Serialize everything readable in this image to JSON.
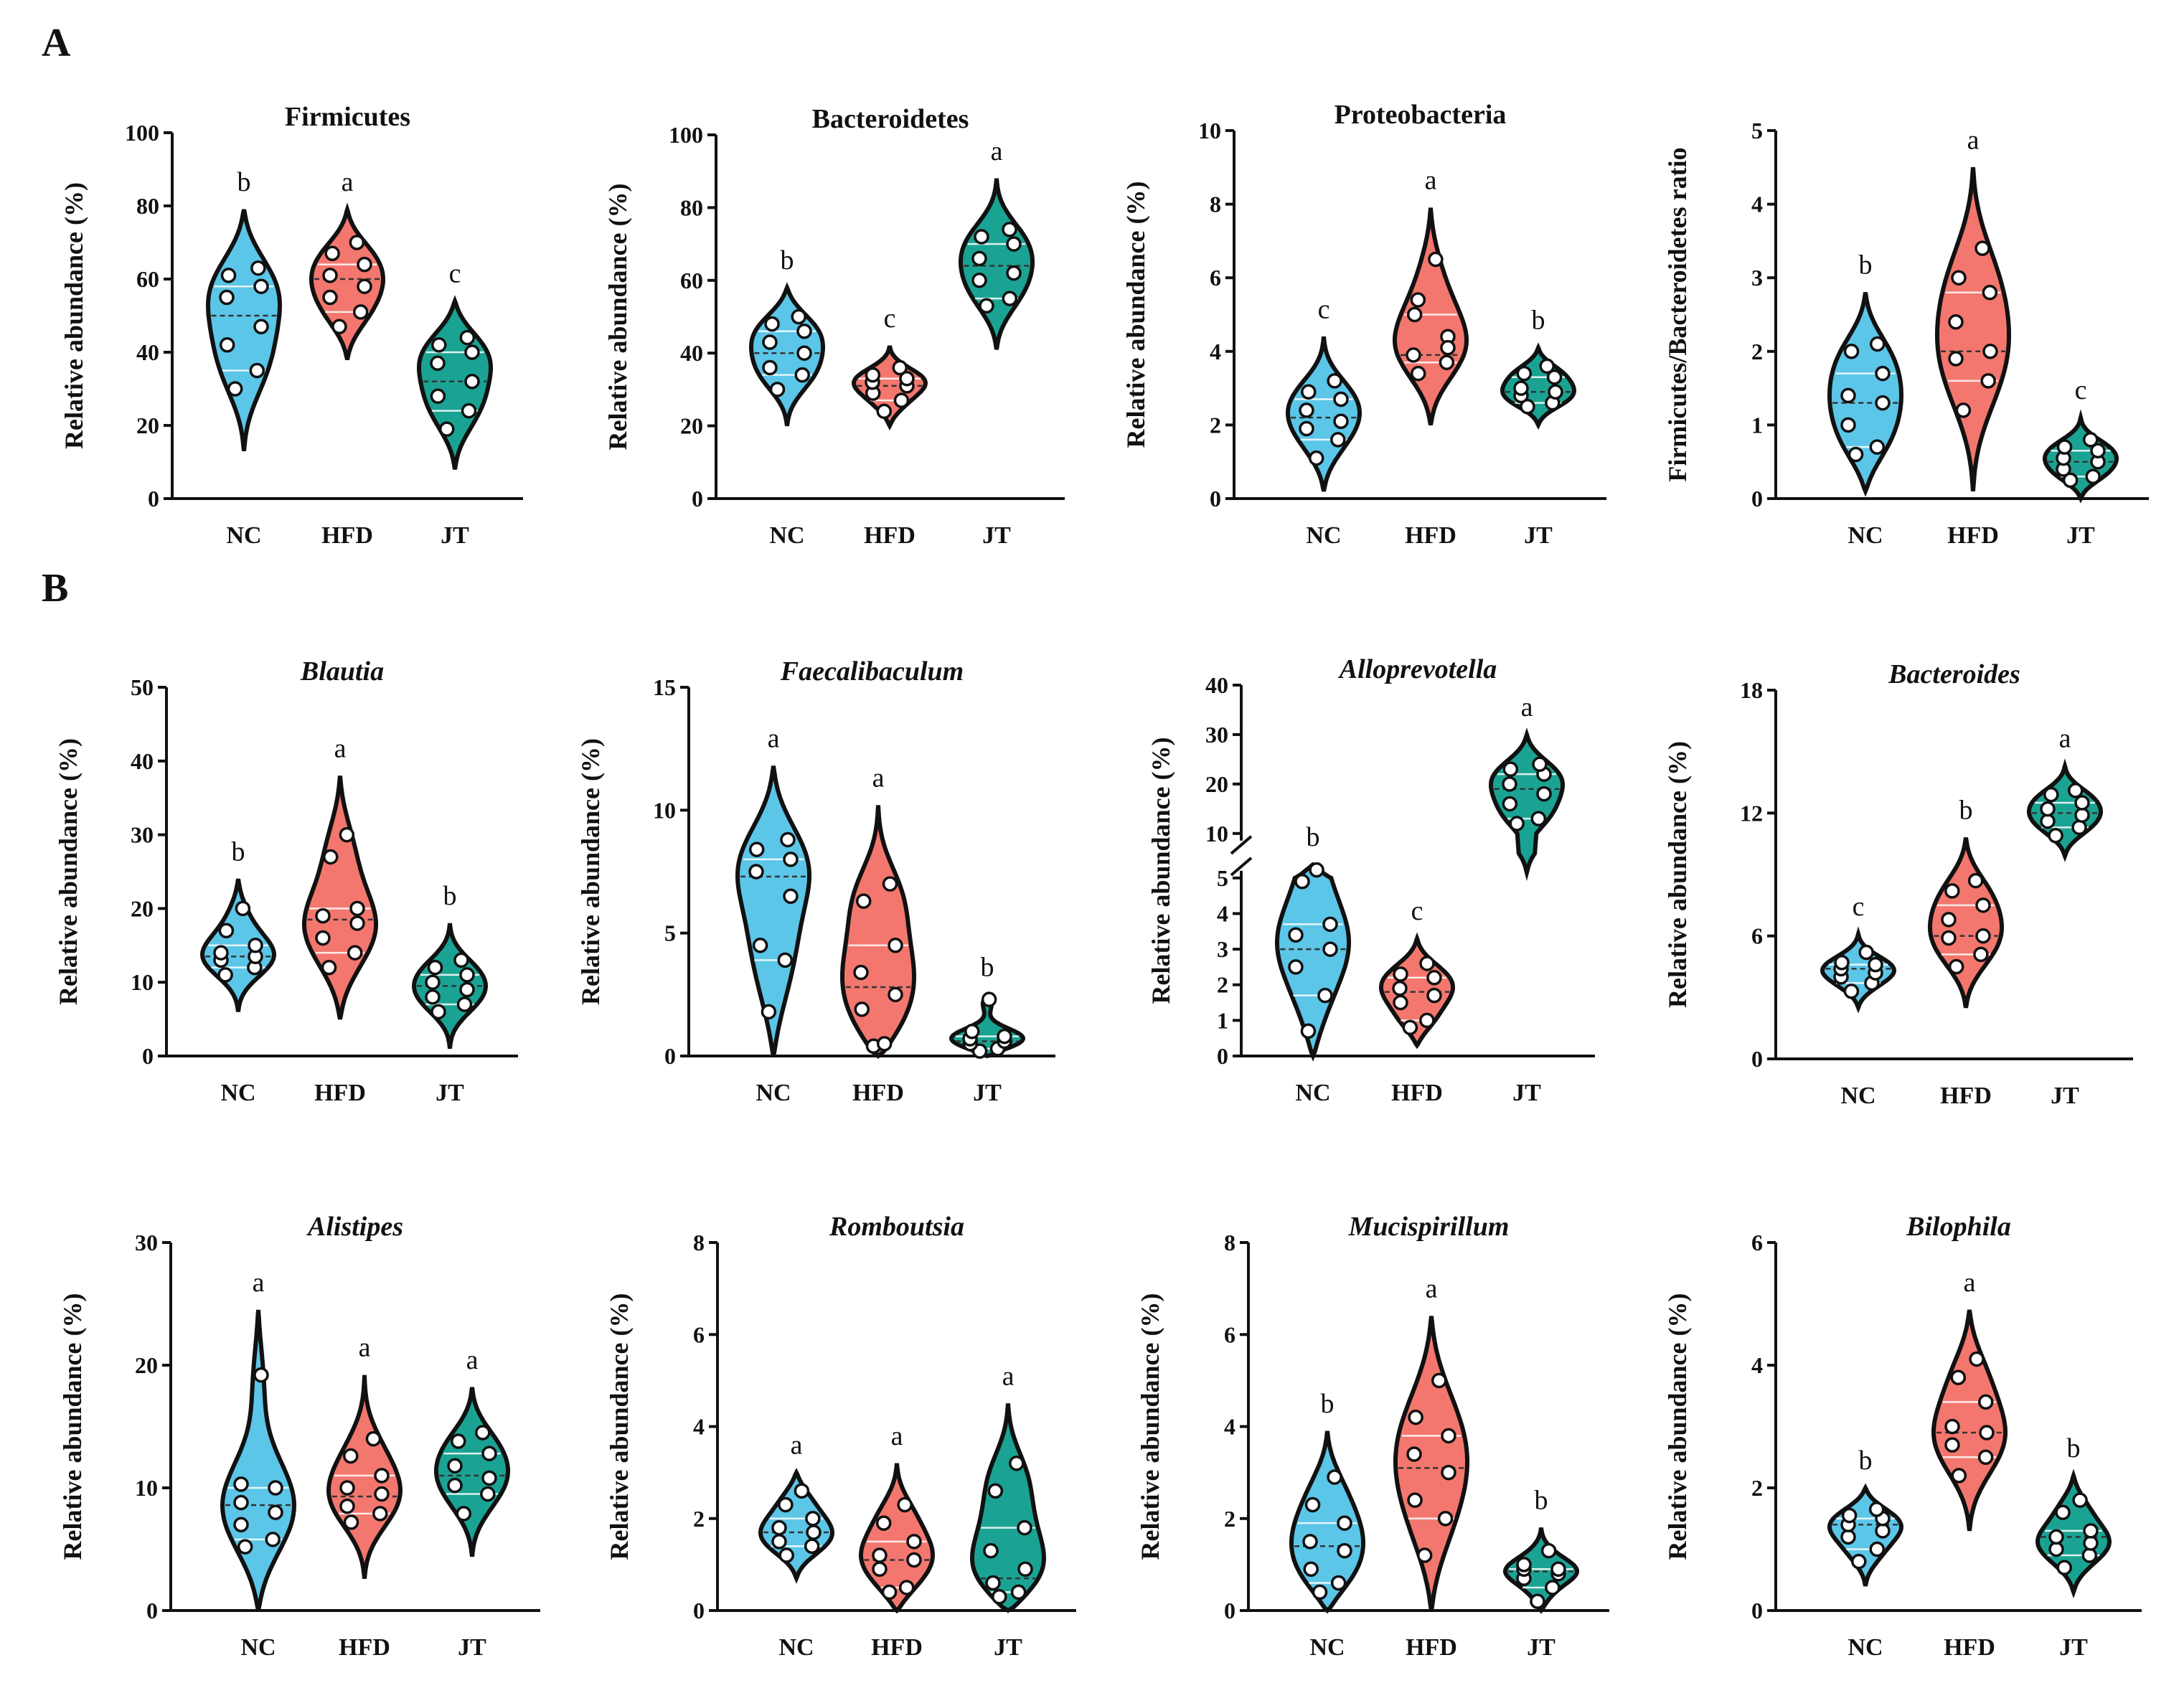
{
  "panel_labels": [
    "A",
    "B"
  ],
  "colors": {
    "NC": "#5bc6e8",
    "HFD": "#f3776e",
    "JT": "#1aa393"
  },
  "chart_data": [
    {
      "type": "violin",
      "panel": "A",
      "title": "Firmicutes",
      "italic": false,
      "ylabel": "Relative abundance (%)",
      "categories": [
        "NC",
        "HFD",
        "JT"
      ],
      "ylim": [
        0,
        100
      ],
      "yticks": [
        0,
        20,
        40,
        60,
        80,
        100
      ],
      "ytick_labels": [
        "0",
        "20",
        "40",
        "60",
        "80",
        "100"
      ],
      "series": [
        {
          "name": "NC",
          "points": [
            30,
            35,
            42,
            47,
            55,
            58,
            61,
            63
          ],
          "median": 50,
          "range": [
            13,
            79
          ],
          "letter": "b"
        },
        {
          "name": "HFD",
          "points": [
            47,
            51,
            55,
            58,
            61,
            64,
            67,
            70
          ],
          "median": 60,
          "range": [
            38,
            79
          ],
          "letter": "a"
        },
        {
          "name": "JT",
          "points": [
            19,
            24,
            28,
            32,
            37,
            40,
            42,
            44
          ],
          "median": 32,
          "range": [
            8,
            54
          ],
          "letter": "c"
        }
      ]
    },
    {
      "type": "violin",
      "panel": "A",
      "title": "Bacteroidetes",
      "italic": false,
      "ylabel": "Relative abundance (%)",
      "categories": [
        "NC",
        "HFD",
        "JT"
      ],
      "ylim": [
        0,
        100
      ],
      "yticks": [
        0,
        20,
        40,
        60,
        80,
        100
      ],
      "ytick_labels": [
        "0",
        "20",
        "40",
        "60",
        "80",
        "100"
      ],
      "series": [
        {
          "name": "NC",
          "points": [
            30,
            34,
            36,
            40,
            43,
            46,
            48,
            50
          ],
          "median": 40,
          "range": [
            20,
            58
          ],
          "letter": "b"
        },
        {
          "name": "HFD",
          "points": [
            24,
            27,
            29,
            31,
            32,
            33,
            34,
            36
          ],
          "median": 31,
          "range": [
            20,
            42
          ],
          "letter": "c"
        },
        {
          "name": "JT",
          "points": [
            53,
            55,
            60,
            62,
            66,
            70,
            72,
            74
          ],
          "median": 64,
          "range": [
            41,
            88
          ],
          "letter": "a"
        }
      ]
    },
    {
      "type": "violin",
      "panel": "A",
      "title": "Proteobacteria",
      "italic": false,
      "ylabel": "Relative abundance (%)",
      "categories": [
        "NC",
        "HFD",
        "JT"
      ],
      "ylim": [
        0,
        10
      ],
      "yticks": [
        0,
        2,
        4,
        6,
        8,
        10
      ],
      "ytick_labels": [
        "0",
        "2",
        "4",
        "6",
        "8",
        "10"
      ],
      "series": [
        {
          "name": "NC",
          "points": [
            1.1,
            1.6,
            1.9,
            2.1,
            2.4,
            2.7,
            2.9,
            3.2
          ],
          "median": 2.2,
          "range": [
            0.2,
            4.4
          ],
          "letter": "c"
        },
        {
          "name": "HFD",
          "points": [
            3.4,
            3.7,
            3.9,
            4.4,
            5.0,
            6.5,
            5.4,
            4.1
          ],
          "median": 3.9,
          "range": [
            2.0,
            7.9
          ],
          "letter": "a"
        },
        {
          "name": "JT",
          "points": [
            2.5,
            2.6,
            2.8,
            2.9,
            3.0,
            3.3,
            3.4,
            3.6
          ],
          "median": 2.9,
          "range": [
            2.0,
            4.1
          ],
          "letter": "b"
        }
      ]
    },
    {
      "type": "violin",
      "panel": "A",
      "title": "",
      "italic": false,
      "ylabel": "Firmicutes/Bacteroidetes ratio",
      "categories": [
        "NC",
        "HFD",
        "JT"
      ],
      "ylim": [
        0,
        5
      ],
      "yticks": [
        0,
        1,
        2,
        3,
        4,
        5
      ],
      "ytick_labels": [
        "0",
        "1",
        "2",
        "3",
        "4",
        "5"
      ],
      "series": [
        {
          "name": "NC",
          "points": [
            0.6,
            0.7,
            1.0,
            1.3,
            1.4,
            1.7,
            2.0,
            2.1
          ],
          "median": 1.3,
          "range": [
            0.1,
            2.8
          ],
          "letter": "b"
        },
        {
          "name": "HFD",
          "points": [
            1.2,
            1.6,
            1.9,
            2.0,
            2.4,
            2.8,
            3.0,
            3.4
          ],
          "median": 2.0,
          "range": [
            0.1,
            4.5
          ],
          "letter": "a"
        },
        {
          "name": "JT",
          "points": [
            0.25,
            0.3,
            0.4,
            0.5,
            0.55,
            0.65,
            0.7,
            0.8
          ],
          "median": 0.5,
          "range": [
            0.0,
            1.1
          ],
          "letter": "c"
        }
      ]
    },
    {
      "type": "violin",
      "panel": "B",
      "title": "Blautia",
      "italic": true,
      "ylabel": "Relative abundance (%)",
      "categories": [
        "NC",
        "HFD",
        "JT"
      ],
      "ylim": [
        0,
        50
      ],
      "yticks": [
        0,
        10,
        20,
        30,
        40,
        50
      ],
      "ytick_labels": [
        "0",
        "10",
        "20",
        "30",
        "40",
        "50"
      ],
      "series": [
        {
          "name": "NC",
          "points": [
            11,
            12,
            13,
            13.5,
            14,
            15,
            17,
            20
          ],
          "median": 13.5,
          "range": [
            6,
            24
          ],
          "letter": "b"
        },
        {
          "name": "HFD",
          "points": [
            12,
            14,
            16,
            18,
            19,
            20,
            27,
            30
          ],
          "median": 18.5,
          "range": [
            5,
            38
          ],
          "letter": "a"
        },
        {
          "name": "JT",
          "points": [
            6,
            7,
            8,
            9,
            10,
            11,
            12,
            13
          ],
          "median": 9.5,
          "range": [
            1,
            18
          ],
          "letter": "b"
        }
      ]
    },
    {
      "type": "violin",
      "panel": "B",
      "title": "Faecalibaculum",
      "italic": true,
      "ylabel": "Relative abundance (%)",
      "categories": [
        "NC",
        "HFD",
        "JT"
      ],
      "ylim": [
        0,
        15
      ],
      "yticks": [
        0,
        5,
        10,
        15
      ],
      "ytick_labels": [
        "0",
        "5",
        "10",
        "15"
      ],
      "series": [
        {
          "name": "NC",
          "points": [
            1.8,
            3.9,
            4.5,
            6.5,
            7.5,
            8.0,
            8.4,
            8.8
          ],
          "median": 7.3,
          "range": [
            0,
            11.8
          ],
          "letter": "a"
        },
        {
          "name": "HFD",
          "points": [
            0.4,
            0.5,
            1.9,
            2.5,
            3.4,
            4.5,
            6.3,
            7.0
          ],
          "median": 2.8,
          "range": [
            0,
            10.2
          ],
          "letter": "a"
        },
        {
          "name": "JT",
          "points": [
            0.2,
            0.3,
            0.5,
            0.6,
            0.7,
            0.8,
            1.0,
            2.3
          ],
          "median": 0.6,
          "range": [
            0,
            2.5
          ],
          "letter": "b"
        }
      ]
    },
    {
      "type": "violin",
      "panel": "B",
      "title": "Alloprevotella",
      "italic": true,
      "ylabel": "Relative abundance (%)",
      "categories": [
        "NC",
        "HFD",
        "JT"
      ],
      "ylim": [
        0,
        40
      ],
      "broken_axis": [
        5,
        10
      ],
      "yticks": [
        0,
        1,
        2,
        3,
        4,
        5,
        10,
        20,
        30,
        40
      ],
      "ytick_labels": [
        "0",
        "1",
        "2",
        "3",
        "4",
        "5",
        "10",
        "20",
        "30",
        "40"
      ],
      "series": [
        {
          "name": "NC",
          "points": [
            0.7,
            1.7,
            2.5,
            3.0,
            3.4,
            3.7,
            4.9,
            6.5
          ],
          "median": 3.0,
          "range": [
            0,
            7.5
          ],
          "letter": "b"
        },
        {
          "name": "HFD",
          "points": [
            0.8,
            1.0,
            1.5,
            1.7,
            1.9,
            2.2,
            2.3,
            2.6
          ],
          "median": 1.8,
          "range": [
            0.3,
            3.3
          ],
          "letter": "c"
        },
        {
          "name": "JT",
          "points": [
            12,
            13,
            16,
            18,
            20,
            22,
            23,
            24
          ],
          "median": 19,
          "range": [
            6,
            30
          ],
          "letter": "a"
        }
      ]
    },
    {
      "type": "violin",
      "panel": "B",
      "title": "Bacteroides",
      "italic": true,
      "ylabel": "Relative abundance (%)",
      "categories": [
        "NC",
        "HFD",
        "JT"
      ],
      "ylim": [
        0,
        18
      ],
      "yticks": [
        0,
        6,
        12,
        18
      ],
      "ytick_labels": [
        "0",
        "6",
        "12",
        "18"
      ],
      "series": [
        {
          "name": "NC",
          "points": [
            3.3,
            3.7,
            4.0,
            4.2,
            4.4,
            4.6,
            4.7,
            5.2
          ],
          "median": 4.4,
          "range": [
            2.5,
            6.1
          ],
          "letter": "c"
        },
        {
          "name": "HFD",
          "points": [
            4.5,
            5.1,
            5.9,
            6.0,
            6.8,
            7.5,
            8.2,
            8.7
          ],
          "median": 6.0,
          "range": [
            2.5,
            10.8
          ],
          "letter": "b"
        },
        {
          "name": "JT",
          "points": [
            10.9,
            11.3,
            11.6,
            11.9,
            12.2,
            12.5,
            12.9,
            13.1
          ],
          "median": 12.0,
          "range": [
            9.9,
            14.3
          ],
          "letter": "a"
        }
      ]
    },
    {
      "type": "violin",
      "panel": "B",
      "title": "Alistipes",
      "italic": true,
      "ylabel": "Relative abundance (%)",
      "categories": [
        "NC",
        "HFD",
        "JT"
      ],
      "ylim": [
        0,
        30
      ],
      "yticks": [
        0,
        10,
        20,
        30
      ],
      "ytick_labels": [
        "0",
        "10",
        "20",
        "30"
      ],
      "series": [
        {
          "name": "NC",
          "points": [
            5.2,
            5.8,
            7.0,
            8.0,
            8.8,
            10.0,
            10.3,
            19.2
          ],
          "median": 8.6,
          "range": [
            0,
            24.5
          ],
          "letter": "a"
        },
        {
          "name": "HFD",
          "points": [
            7.2,
            7.9,
            8.5,
            9.5,
            10.0,
            11.0,
            12.6,
            14.0
          ],
          "median": 9.3,
          "range": [
            2.6,
            19.2
          ],
          "letter": "a"
        },
        {
          "name": "JT",
          "points": [
            7.9,
            9.5,
            10.2,
            10.8,
            11.8,
            12.8,
            13.8,
            14.5
          ],
          "median": 11.0,
          "range": [
            4.4,
            18.2
          ],
          "letter": "a"
        }
      ]
    },
    {
      "type": "violin",
      "panel": "B",
      "title": "Romboutsia",
      "italic": true,
      "ylabel": "Relative abundance (%)",
      "categories": [
        "NC",
        "HFD",
        "JT"
      ],
      "ylim": [
        0,
        8
      ],
      "yticks": [
        0,
        2,
        4,
        6,
        8
      ],
      "ytick_labels": [
        "0",
        "2",
        "4",
        "6",
        "8"
      ],
      "series": [
        {
          "name": "NC",
          "points": [
            1.2,
            1.4,
            1.5,
            1.7,
            1.8,
            2.0,
            2.3,
            2.6
          ],
          "median": 1.7,
          "range": [
            0.7,
            3.0
          ],
          "letter": "a"
        },
        {
          "name": "HFD",
          "points": [
            0.4,
            0.5,
            0.9,
            1.1,
            1.2,
            1.5,
            1.9,
            2.3
          ],
          "median": 1.1,
          "range": [
            0,
            3.2
          ],
          "letter": "a"
        },
        {
          "name": "JT",
          "points": [
            0.3,
            0.4,
            0.6,
            0.9,
            1.3,
            1.8,
            2.6,
            3.2
          ],
          "median": 0.7,
          "range": [
            0,
            4.5
          ],
          "letter": "a"
        }
      ]
    },
    {
      "type": "violin",
      "panel": "B",
      "title": "Mucispirillum",
      "italic": true,
      "ylabel": "Relative abundance (%)",
      "categories": [
        "NC",
        "HFD",
        "JT"
      ],
      "ylim": [
        0,
        8
      ],
      "yticks": [
        0,
        2,
        4,
        6,
        8
      ],
      "ytick_labels": [
        "0",
        "2",
        "4",
        "6",
        "8"
      ],
      "series": [
        {
          "name": "NC",
          "points": [
            0.4,
            0.6,
            0.9,
            1.3,
            1.5,
            1.9,
            2.3,
            2.9
          ],
          "median": 1.4,
          "range": [
            0,
            3.9
          ],
          "letter": "b"
        },
        {
          "name": "HFD",
          "points": [
            1.2,
            2.0,
            2.4,
            3.0,
            3.4,
            3.8,
            4.2,
            5.0
          ],
          "median": 3.1,
          "range": [
            0,
            6.4
          ],
          "letter": "a"
        },
        {
          "name": "JT",
          "points": [
            0.2,
            0.5,
            0.7,
            0.8,
            0.9,
            0.9,
            1.0,
            1.3
          ],
          "median": 0.85,
          "range": [
            0,
            1.8
          ],
          "letter": "b"
        }
      ]
    },
    {
      "type": "violin",
      "panel": "B",
      "title": "Bilophila",
      "italic": true,
      "ylabel": "Relative abundance (%)",
      "categories": [
        "NC",
        "HFD",
        "JT"
      ],
      "ylim": [
        0,
        6
      ],
      "yticks": [
        0,
        2,
        4,
        6
      ],
      "ytick_labels": [
        "0",
        "2",
        "4",
        "6"
      ],
      "series": [
        {
          "name": "NC",
          "points": [
            0.8,
            1.0,
            1.2,
            1.3,
            1.4,
            1.5,
            1.55,
            1.65
          ],
          "median": 1.4,
          "range": [
            0.4,
            2.0
          ],
          "letter": "b"
        },
        {
          "name": "HFD",
          "points": [
            2.2,
            2.5,
            2.7,
            2.9,
            3.0,
            3.4,
            3.8,
            4.1
          ],
          "median": 2.9,
          "range": [
            1.3,
            4.9
          ],
          "letter": "a"
        },
        {
          "name": "JT",
          "points": [
            0.7,
            0.9,
            1.0,
            1.1,
            1.2,
            1.3,
            1.6,
            1.8
          ],
          "median": 1.2,
          "range": [
            0.3,
            2.2
          ],
          "letter": "b"
        }
      ]
    }
  ]
}
